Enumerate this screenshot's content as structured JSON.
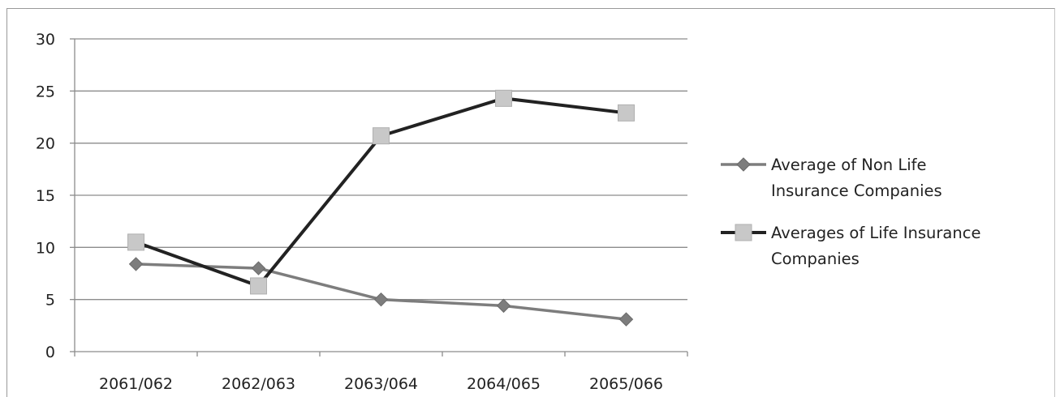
{
  "chart_data": {
    "type": "line",
    "categories": [
      "2061/062",
      "2062/063",
      "2063/064",
      "2064/065",
      "2065/066"
    ],
    "series": [
      {
        "name": "Average of Non Life Insurance Companies",
        "values": [
          8.4,
          8.0,
          5.0,
          4.4,
          3.1
        ],
        "color": "#7d7d7d",
        "marker": "diamond"
      },
      {
        "name": "Averages of Life Insurance Companies",
        "values": [
          10.5,
          6.3,
          20.7,
          24.3,
          22.9
        ],
        "color": "#222222",
        "marker": "square",
        "marker_color": "#c8c8c8"
      }
    ],
    "title": "",
    "xlabel": "",
    "ylabel": "",
    "ylim": [
      0,
      30
    ],
    "yticks": [
      0,
      5,
      10,
      15,
      20,
      25,
      30
    ],
    "grid": true,
    "legend_position": "right"
  }
}
